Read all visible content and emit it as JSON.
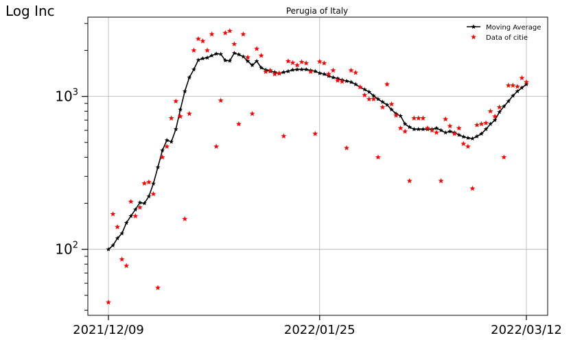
{
  "corner_label": "Log Inc",
  "chart_data": {
    "type": "line",
    "title": "Perugia of Italy",
    "xlabel": "",
    "ylabel": "",
    "y_scale": "log",
    "ylim": [
      37,
      3300
    ],
    "y_major_ticks": [
      {
        "value": 100,
        "label_base": "10",
        "label_exp": "2"
      },
      {
        "value": 1000,
        "label_base": "10",
        "label_exp": "3"
      }
    ],
    "x_ticks": [
      {
        "index": 0,
        "label": "2021/12/09"
      },
      {
        "index": 47,
        "label": "2022/01/25"
      },
      {
        "index": 93,
        "label": "2022/03/12"
      }
    ],
    "grid": true,
    "legend_position": "top-right",
    "series": [
      {
        "name": "Moving Average",
        "style": "line-star",
        "color": "#000000",
        "values": [
          100,
          106,
          118,
          127,
          149,
          165,
          182,
          202,
          200,
          222,
          269,
          344,
          443,
          517,
          505,
          610,
          820,
          1080,
          1330,
          1500,
          1730,
          1770,
          1790,
          1850,
          1900,
          1890,
          1720,
          1710,
          1920,
          1880,
          1820,
          1700,
          1600,
          1700,
          1540,
          1490,
          1460,
          1440,
          1410,
          1440,
          1460,
          1490,
          1500,
          1500,
          1500,
          1480,
          1460,
          1420,
          1400,
          1360,
          1330,
          1310,
          1280,
          1260,
          1240,
          1200,
          1150,
          1110,
          1070,
          1010,
          960,
          920,
          880,
          820,
          770,
          745,
          660,
          630,
          610,
          610,
          610,
          610,
          610,
          620,
          600,
          580,
          590,
          580,
          560,
          545,
          535,
          530,
          548,
          570,
          610,
          660,
          700,
          790,
          860,
          930,
          1010,
          1080,
          1140,
          1200
        ]
      },
      {
        "name": "Data of citie",
        "style": "scatter-star",
        "color": "#ff0000",
        "values": [
          45,
          170,
          140,
          86,
          78,
          205,
          165,
          188,
          270,
          275,
          230,
          56,
          400,
          470,
          720,
          930,
          740,
          158,
          770,
          2000,
          2380,
          2300,
          2000,
          2550,
          470,
          940,
          2600,
          2680,
          2200,
          660,
          2550,
          1800,
          770,
          2050,
          1850,
          1450,
          1480,
          1400,
          1420,
          550,
          1700,
          1660,
          1600,
          1680,
          1650,
          1450,
          570,
          1690,
          1650,
          1400,
          1480,
          1270,
          1250,
          460,
          1480,
          1430,
          1150,
          1020,
          960,
          960,
          400,
          850,
          1200,
          890,
          750,
          620,
          590,
          280,
          720,
          720,
          720,
          620,
          600,
          580,
          280,
          710,
          640,
          570,
          620,
          490,
          470,
          250,
          650,
          660,
          670,
          800,
          740,
          850,
          400,
          1180,
          1180,
          1160,
          1320,
          1240
        ]
      }
    ]
  }
}
